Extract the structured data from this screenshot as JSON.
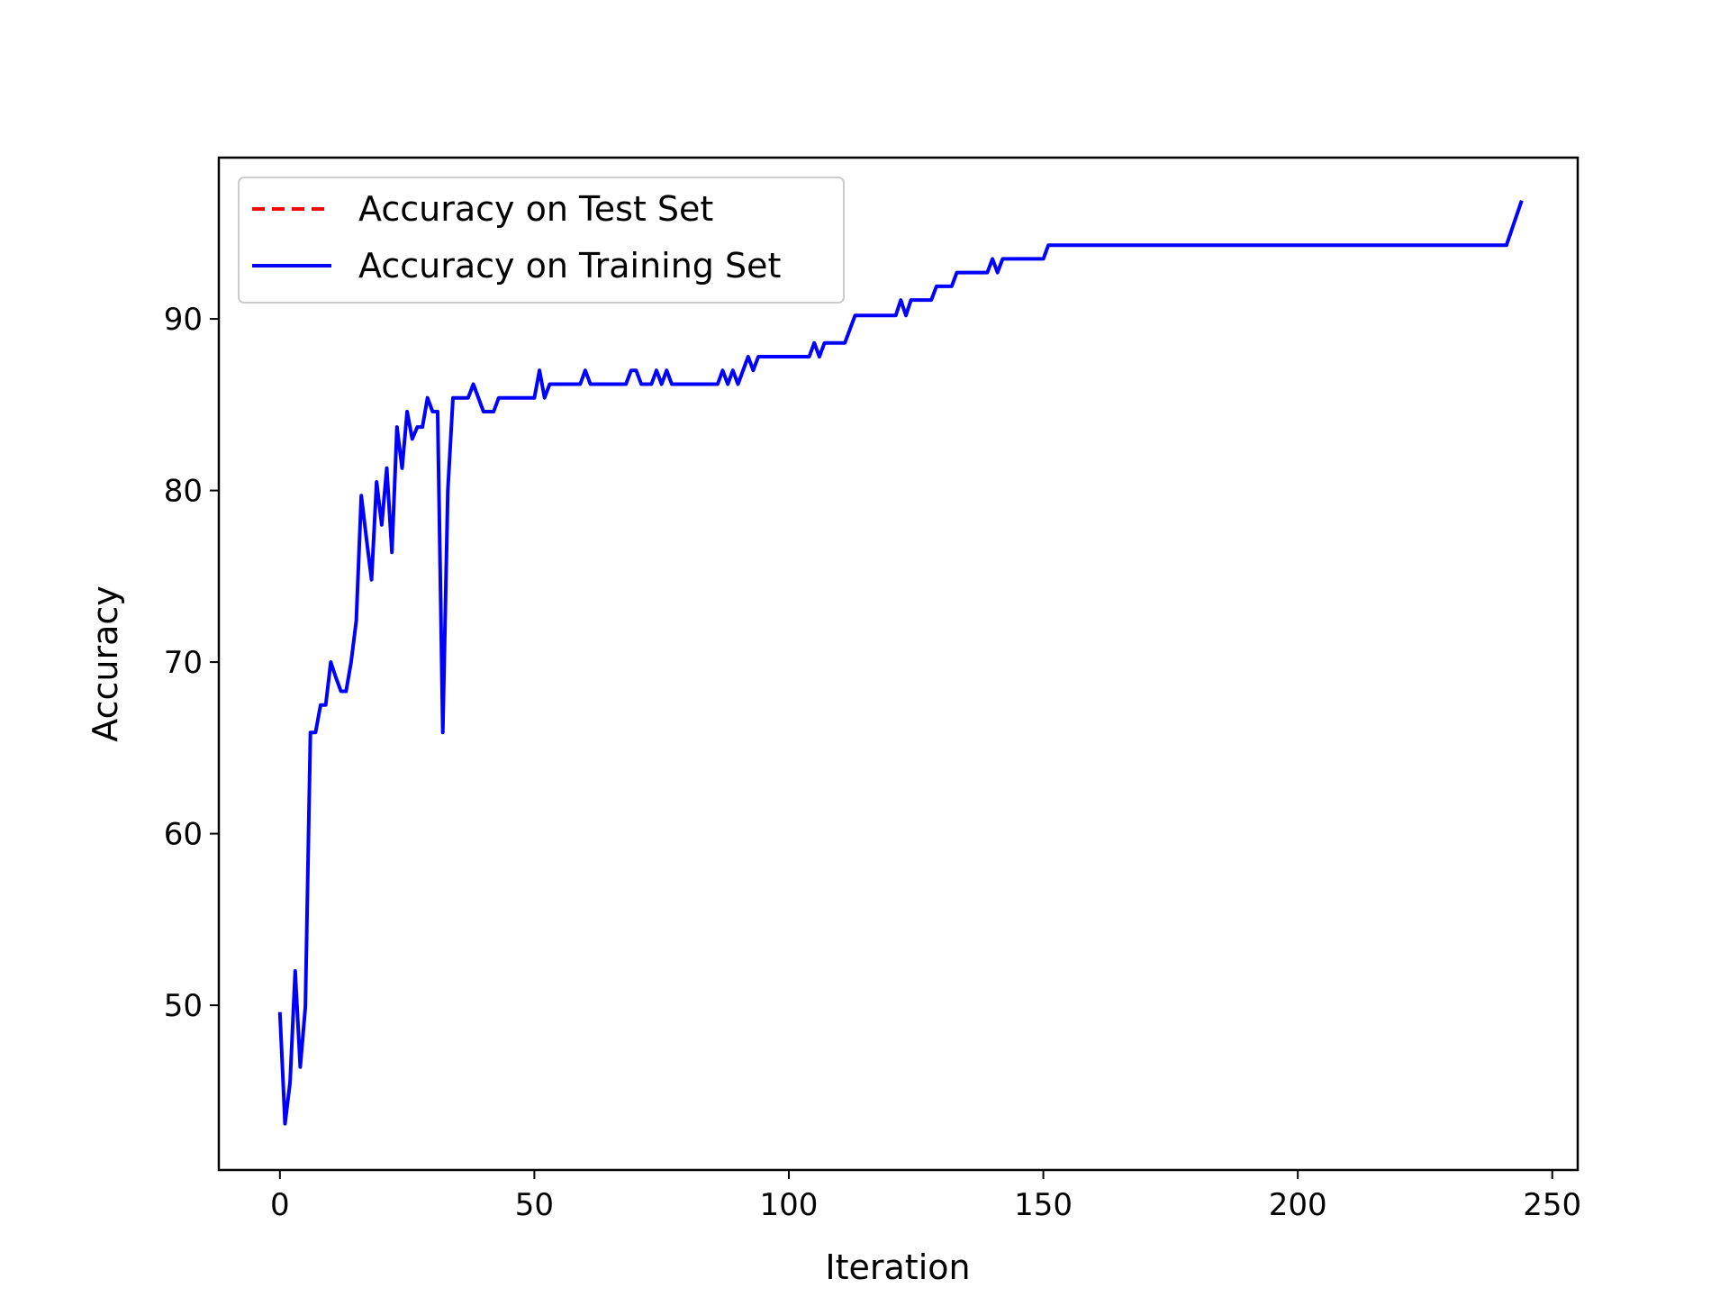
{
  "chart_data": {
    "type": "line",
    "xlabel": "Iteration",
    "ylabel": "Accuracy",
    "xlim": [
      -12,
      255
    ],
    "ylim": [
      40.4,
      99.4
    ],
    "xticks": [
      0,
      50,
      100,
      150,
      200,
      250
    ],
    "yticks": [
      50,
      60,
      70,
      80,
      90
    ],
    "xtick_labels": [
      "0",
      "50",
      "100",
      "150",
      "200",
      "250"
    ],
    "ytick_labels": [
      "50",
      "60",
      "70",
      "80",
      "90"
    ],
    "grid": false,
    "legend_position": "upper-left",
    "series": [
      {
        "name": "Accuracy on Test Set",
        "color": "#ff0000",
        "style": "dashed",
        "points": []
      },
      {
        "name": "Accuracy on Training Set",
        "color": "#0000ff",
        "style": "solid",
        "points": [
          [
            0,
            49.6
          ],
          [
            1,
            43.1
          ],
          [
            2,
            45.5
          ],
          [
            3,
            52.0
          ],
          [
            4,
            46.4
          ],
          [
            5,
            49.9
          ],
          [
            6,
            65.9
          ],
          [
            7,
            65.9
          ],
          [
            8,
            67.5
          ],
          [
            9,
            67.5
          ],
          [
            10,
            70.0
          ],
          [
            11,
            69.1
          ],
          [
            12,
            68.3
          ],
          [
            13,
            68.3
          ],
          [
            14,
            70.0
          ],
          [
            15,
            72.4
          ],
          [
            16,
            79.7
          ],
          [
            17,
            77.2
          ],
          [
            18,
            74.8
          ],
          [
            19,
            80.5
          ],
          [
            20,
            78.0
          ],
          [
            21,
            81.3
          ],
          [
            22,
            76.4
          ],
          [
            23,
            83.7
          ],
          [
            24,
            81.3
          ],
          [
            25,
            84.6
          ],
          [
            26,
            83.0
          ],
          [
            27,
            83.7
          ],
          [
            28,
            83.7
          ],
          [
            29,
            85.4
          ],
          [
            30,
            84.6
          ],
          [
            31,
            84.6
          ],
          [
            32,
            65.9
          ],
          [
            33,
            80.0
          ],
          [
            34,
            85.4
          ],
          [
            35,
            85.4
          ],
          [
            37,
            85.4
          ],
          [
            38,
            86.2
          ],
          [
            40,
            84.6
          ],
          [
            42,
            84.6
          ],
          [
            43,
            85.4
          ],
          [
            50,
            85.4
          ],
          [
            51,
            87.0
          ],
          [
            52,
            85.4
          ],
          [
            53,
            86.2
          ],
          [
            59,
            86.2
          ],
          [
            60,
            87.0
          ],
          [
            61,
            86.2
          ],
          [
            68,
            86.2
          ],
          [
            69,
            87.0
          ],
          [
            70,
            87.0
          ],
          [
            71,
            86.2
          ],
          [
            73,
            86.2
          ],
          [
            74,
            87.0
          ],
          [
            75,
            86.2
          ],
          [
            76,
            87.0
          ],
          [
            77,
            86.2
          ],
          [
            86,
            86.2
          ],
          [
            87,
            87.0
          ],
          [
            88,
            86.2
          ],
          [
            89,
            87.0
          ],
          [
            90,
            86.2
          ],
          [
            92,
            87.8
          ],
          [
            93,
            87.0
          ],
          [
            94,
            87.8
          ],
          [
            104,
            87.8
          ],
          [
            105,
            88.6
          ],
          [
            106,
            87.8
          ],
          [
            107,
            88.6
          ],
          [
            111,
            88.6
          ],
          [
            113,
            90.2
          ],
          [
            121,
            90.2
          ],
          [
            122,
            91.1
          ],
          [
            123,
            90.2
          ],
          [
            124,
            91.1
          ],
          [
            128,
            91.1
          ],
          [
            129,
            91.9
          ],
          [
            132,
            91.9
          ],
          [
            133,
            92.7
          ],
          [
            139,
            92.7
          ],
          [
            140,
            93.5
          ],
          [
            141,
            92.7
          ],
          [
            142,
            93.5
          ],
          [
            150,
            93.5
          ],
          [
            151,
            94.3
          ],
          [
            241,
            94.3
          ],
          [
            244,
            96.9
          ]
        ]
      }
    ]
  }
}
